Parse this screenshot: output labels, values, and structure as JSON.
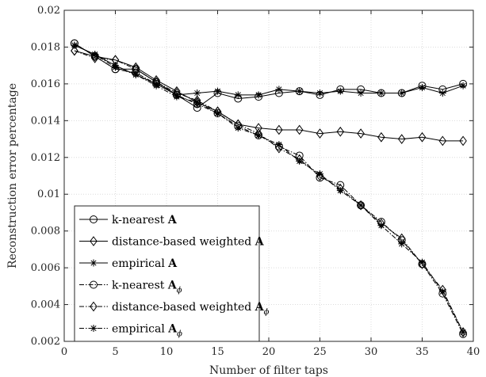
{
  "chart_data": {
    "type": "line",
    "title": "",
    "xlabel": "Number of filter taps",
    "ylabel": "Reconstruction error percentage",
    "xlim": [
      0,
      40
    ],
    "ylim": [
      0.002,
      0.02
    ],
    "xticks": [
      0,
      5,
      10,
      15,
      20,
      25,
      30,
      35,
      40
    ],
    "xtick_labels": [
      "0",
      "5",
      "10",
      "15",
      "20",
      "25",
      "30",
      "35",
      "40"
    ],
    "yticks": [
      0.002,
      0.004,
      0.006,
      0.008,
      0.01,
      0.012,
      0.014,
      0.016,
      0.018,
      0.02
    ],
    "ytick_labels": [
      "0.002",
      "0.004",
      "0.006",
      "0.008",
      "0.01",
      "0.012",
      "0.014",
      "0.016",
      "0.018",
      "0.02"
    ],
    "grid": true,
    "legend_position": "bottom-left",
    "x": [
      1,
      3,
      5,
      7,
      9,
      11,
      13,
      15,
      17,
      19,
      21,
      23,
      25,
      27,
      29,
      31,
      33,
      35,
      37,
      39
    ],
    "series": [
      {
        "name": "k-nearest",
        "name_math": "A",
        "name_sub": "",
        "marker": "circle",
        "dash": "solid",
        "values": [
          0.0182,
          0.0175,
          0.0168,
          0.0168,
          0.0161,
          0.0154,
          0.0147,
          0.0155,
          0.0152,
          0.0153,
          0.0155,
          0.0156,
          0.0154,
          0.0157,
          0.0157,
          0.0155,
          0.0155,
          0.0159,
          0.0157,
          0.016
        ]
      },
      {
        "name": "distance-based weighted",
        "name_math": "A",
        "name_sub": "",
        "marker": "diamond",
        "dash": "solid",
        "values": [
          0.0178,
          0.0175,
          0.0173,
          0.0169,
          0.0162,
          0.0156,
          0.015,
          0.0145,
          0.0138,
          0.0136,
          0.0135,
          0.0135,
          0.0133,
          0.0134,
          0.0133,
          0.0131,
          0.013,
          0.0131,
          0.0129,
          0.0129
        ]
      },
      {
        "name": "empirical",
        "name_math": "A",
        "name_sub": "",
        "marker": "star",
        "dash": "solid",
        "values": [
          0.0181,
          0.0176,
          0.017,
          0.0165,
          0.016,
          0.0154,
          0.0155,
          0.0156,
          0.0154,
          0.0154,
          0.0157,
          0.0156,
          0.0155,
          0.0156,
          0.0155,
          0.0155,
          0.0155,
          0.0158,
          0.0155,
          0.0159
        ]
      },
      {
        "name": "k-nearest",
        "name_math": "A",
        "name_sub": "ϕ",
        "marker": "circle",
        "dash": "dashdot",
        "values": [
          0.0182,
          0.0175,
          0.0168,
          0.0166,
          0.016,
          0.0154,
          0.0149,
          0.0144,
          0.0137,
          0.0132,
          0.0126,
          0.0121,
          0.0109,
          0.0105,
          0.0094,
          0.0085,
          0.0075,
          0.0062,
          0.0046,
          0.0024
        ]
      },
      {
        "name": "distance-based weighted",
        "name_math": "A",
        "name_sub": "ϕ",
        "marker": "diamond",
        "dash": "dashdot",
        "values": [
          0.0178,
          0.0174,
          0.0173,
          0.0168,
          0.0161,
          0.0155,
          0.0151,
          0.0145,
          0.0138,
          0.0133,
          0.0125,
          0.0119,
          0.011,
          0.0103,
          0.0094,
          0.0084,
          0.0076,
          0.0062,
          0.0048,
          0.0025
        ]
      },
      {
        "name": "empirical",
        "name_math": "A",
        "name_sub": "ϕ",
        "marker": "star",
        "dash": "dashdot",
        "values": [
          0.0181,
          0.0176,
          0.0169,
          0.0165,
          0.0159,
          0.0153,
          0.015,
          0.0144,
          0.0136,
          0.0132,
          0.0127,
          0.0118,
          0.0111,
          0.0102,
          0.0094,
          0.0083,
          0.0073,
          0.0063,
          0.0047,
          0.0025
        ]
      }
    ]
  }
}
